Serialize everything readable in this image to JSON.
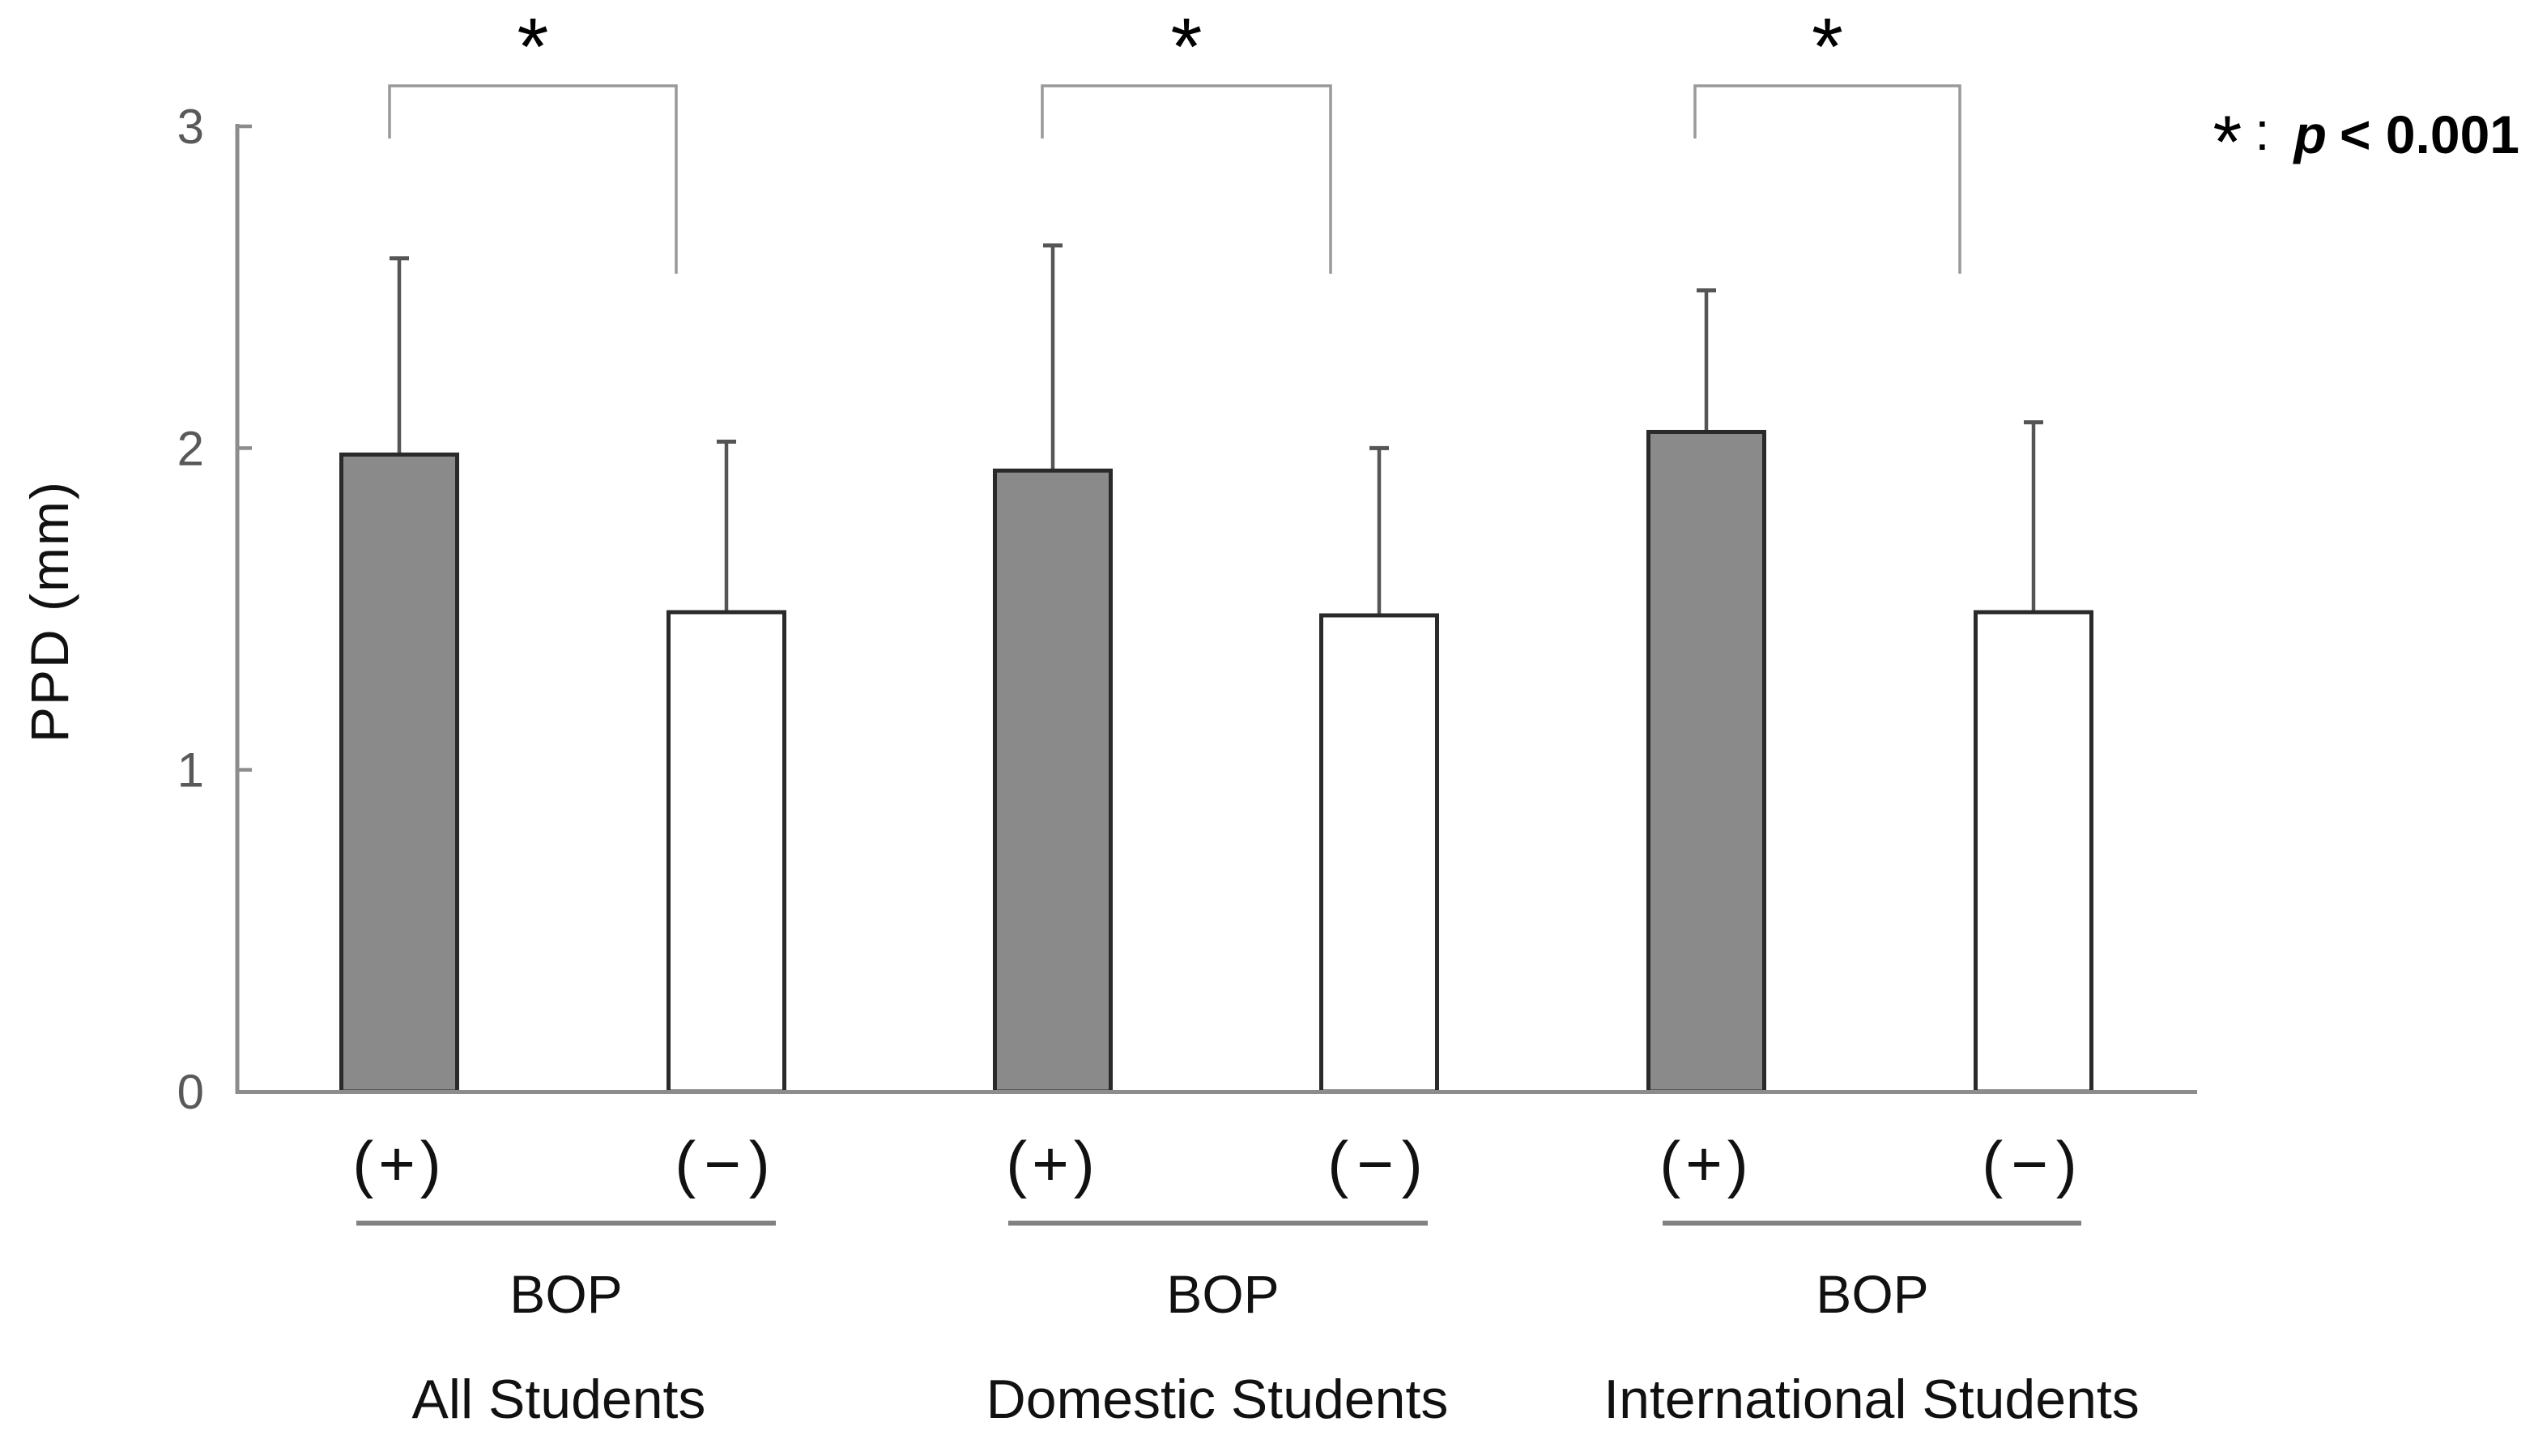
{
  "colors": {
    "background": "#ffffff",
    "bar_positive_fill": "#8a8a8a",
    "bar_negative_fill": "#ffffff",
    "bar_border": "#2a2a2a",
    "axis": "#8c8c8c",
    "error_bar": "#555555",
    "bracket": "#999999",
    "underline": "#808080",
    "text": "#111111",
    "tick_text": "#595959",
    "asterisk": "#000000"
  },
  "legend": {
    "marker": "*",
    "colon": ":",
    "p_symbol": "p",
    "condition": "< 0.001"
  },
  "chart_data": {
    "type": "bar",
    "title": "",
    "xlabel": "",
    "ylabel": "PPD (mm)",
    "ylim": [
      0,
      3
    ],
    "yticks": [
      0,
      1,
      2,
      3
    ],
    "grid": false,
    "legend_position": "top-right",
    "categories": [
      "All Students",
      "Domestic Students",
      "International Students"
    ],
    "series": [
      {
        "name": "BOP (+)",
        "style": "dark-gray",
        "values": [
          1.98,
          1.93,
          2.05
        ],
        "sd_upper": [
          0.61,
          0.7,
          0.44
        ]
      },
      {
        "name": "BOP (−)",
        "style": "white",
        "values": [
          1.49,
          1.48,
          1.49
        ],
        "sd_upper": [
          0.53,
          0.52,
          0.59
        ]
      }
    ],
    "x_tick_labels": {
      "positive": "(+)",
      "negative": "(−)",
      "axis_group": "BOP"
    },
    "significance": {
      "markers": [
        "*",
        "*",
        "*"
      ],
      "note": "BOP(+) vs BOP(−) significant within each group",
      "p_label": "p < 0.001"
    }
  }
}
